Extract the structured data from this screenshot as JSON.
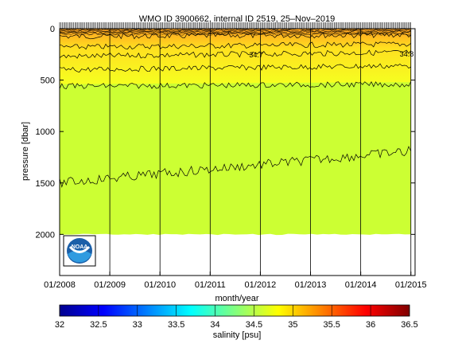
{
  "chart_data": {
    "type": "heatmap",
    "title": "WMO ID 3900662, internal ID 2519, 25–Nov–2019",
    "xlabel": "month/year",
    "ylabel": "pressure [dbar]",
    "x_start": "2008-01",
    "x_end": "2015-02",
    "x_ticks": [
      {
        "date": "2008-01",
        "label": "01/2008"
      },
      {
        "date": "2009-01",
        "label": "01/2009"
      },
      {
        "date": "2010-01",
        "label": "01/2010"
      },
      {
        "date": "2011-01",
        "label": "01/2011"
      },
      {
        "date": "2012-01",
        "label": "01/2012"
      },
      {
        "date": "2013-01",
        "label": "01/2013"
      },
      {
        "date": "2014-01",
        "label": "01/2014"
      },
      {
        "date": "2015-01",
        "label": "01/2015"
      }
    ],
    "y_ticks": [
      {
        "value": 0,
        "label": "0"
      },
      {
        "value": 500,
        "label": "500"
      },
      {
        "value": 1000,
        "label": "1000"
      },
      {
        "value": 1500,
        "label": "1500"
      },
      {
        "value": 2000,
        "label": "2000"
      }
    ],
    "ylim": [
      2400,
      0
    ],
    "data_bottom_dbar": 2000,
    "profile_start": "2008-01",
    "profile_end": "2015-01",
    "colorbar": {
      "label": "salinity [psu]",
      "range": [
        32,
        36.5
      ],
      "ticks": [
        {
          "value": 32,
          "label": "32"
        },
        {
          "value": 32.5,
          "label": "32.5"
        },
        {
          "value": 33,
          "label": "33"
        },
        {
          "value": 33.5,
          "label": "33.5"
        },
        {
          "value": 34,
          "label": "34"
        },
        {
          "value": 34.5,
          "label": "34.5"
        },
        {
          "value": 35,
          "label": "35"
        },
        {
          "value": 35.5,
          "label": "35.5"
        },
        {
          "value": 36,
          "label": "36"
        },
        {
          "value": 36.5,
          "label": "36.5"
        }
      ],
      "stops": [
        "#00008f",
        "#0000ff",
        "#0080ff",
        "#00ffff",
        "#80ff80",
        "#ffff00",
        "#ff8000",
        "#ff0000",
        "#800000"
      ]
    },
    "deep_fill_color": "#ccff33",
    "contours": [
      {
        "salinity": 35.0,
        "start_dbar": 75,
        "end_dbar": 60
      },
      {
        "salinity": 34.9,
        "start_dbar": 180,
        "end_dbar": 150
      },
      {
        "salinity": 34.8,
        "start_dbar": 270,
        "end_dbar": 230
      },
      {
        "salinity": 34.7,
        "start_dbar": 400,
        "end_dbar": 360
      },
      {
        "salinity": 34.6,
        "start_dbar": 560,
        "end_dbar": 540
      },
      {
        "salinity": 34.5,
        "start_dbar": 1500,
        "end_dbar": 1190
      }
    ],
    "contour_labels": [
      {
        "text": "34.7",
        "date": "2011-12",
        "dbar": 280
      },
      {
        "text": "34.8",
        "date": "2014-12",
        "dbar": 270
      }
    ],
    "logo": {
      "name": "noaa-logo",
      "text": "NOAA"
    }
  }
}
